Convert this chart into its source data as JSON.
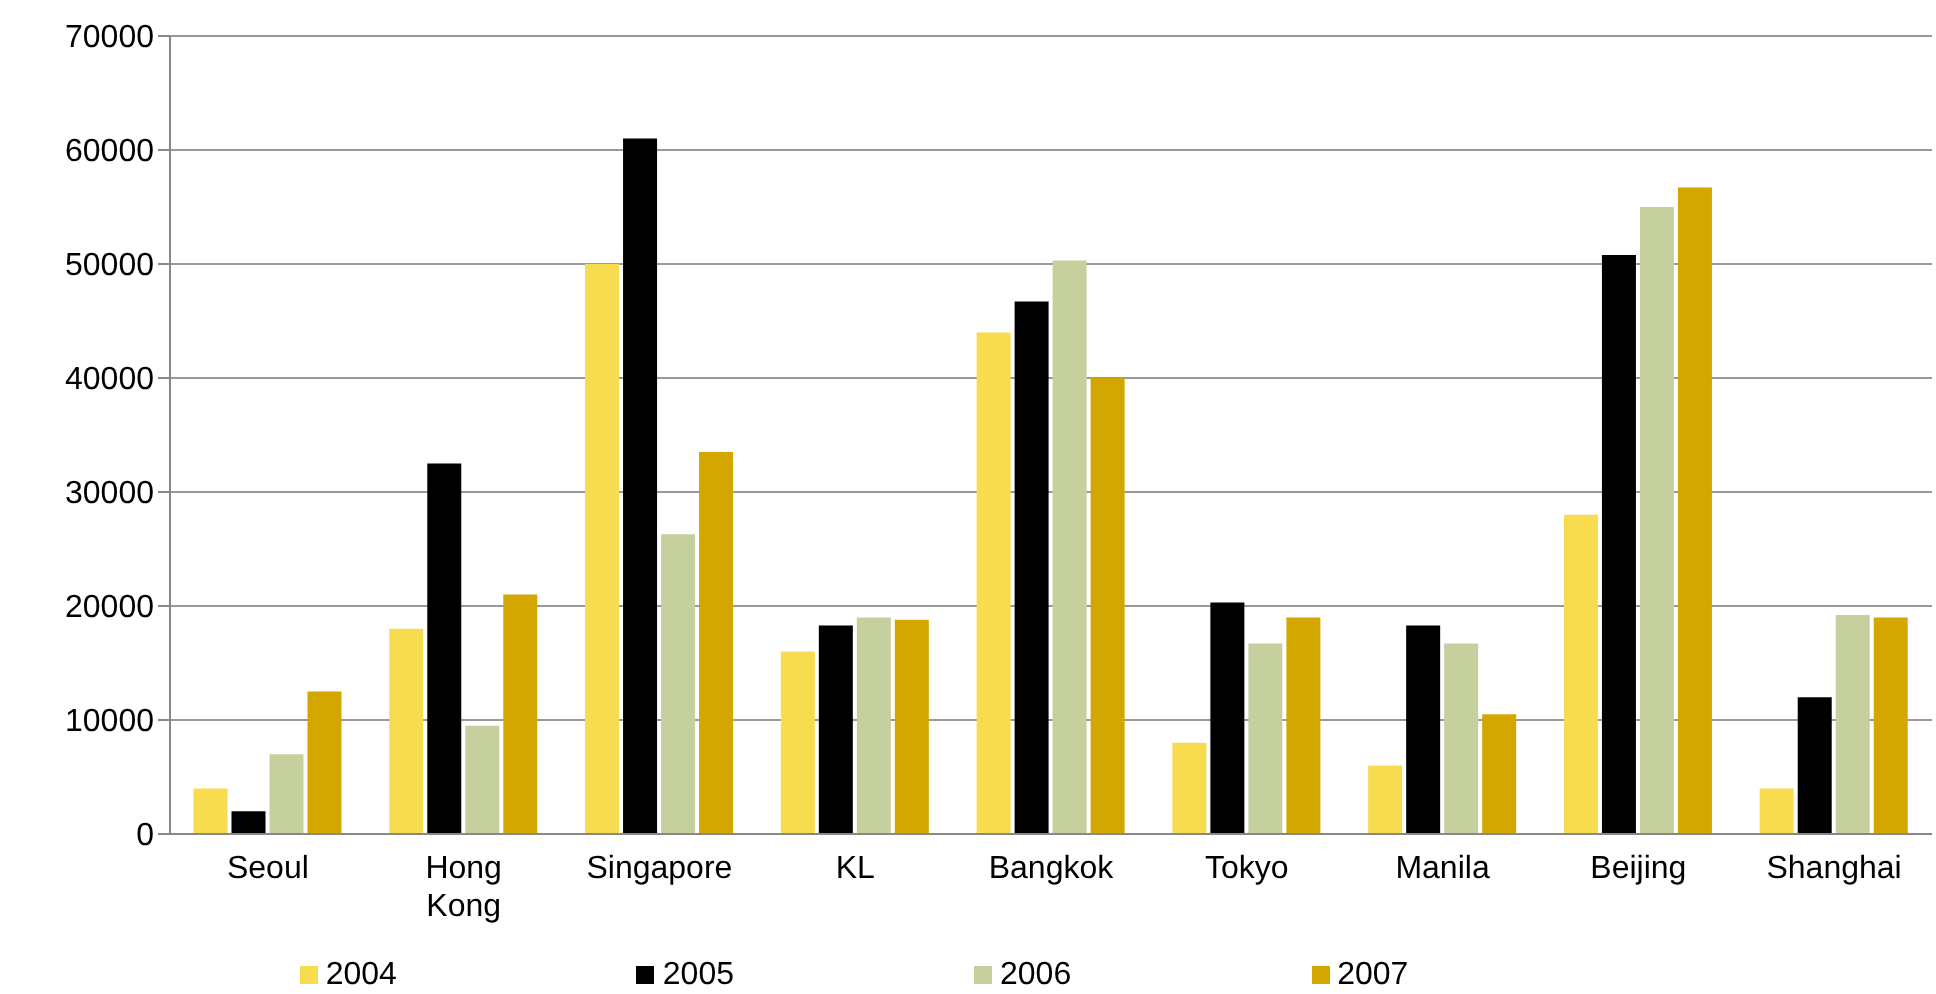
{
  "chart_data": {
    "type": "bar",
    "categories": [
      "Seoul",
      "Hong Kong",
      "Singapore",
      "KL",
      "Bangkok",
      "Tokyo",
      "Manila",
      "Beijing",
      "Shanghai"
    ],
    "series": [
      {
        "name": "2004",
        "color": "#f7dc4f",
        "values": [
          4000,
          18000,
          50000,
          16000,
          44000,
          8000,
          6000,
          28000,
          4000
        ]
      },
      {
        "name": "2005",
        "color": "#000000",
        "values": [
          2000,
          32500,
          61000,
          18300,
          46700,
          20300,
          18300,
          50800,
          12000
        ]
      },
      {
        "name": "2006",
        "color": "#c6cf9e",
        "values": [
          7000,
          9500,
          26300,
          19000,
          50300,
          16700,
          16700,
          55000,
          19200
        ]
      },
      {
        "name": "2007",
        "color": "#d4a600",
        "values": [
          12500,
          21000,
          33500,
          18800,
          40000,
          19000,
          10500,
          56700,
          19000
        ]
      }
    ],
    "ylim": [
      0,
      70000
    ],
    "yticks": [
      0,
      10000,
      20000,
      30000,
      40000,
      50000,
      60000,
      70000
    ],
    "grid": "y",
    "legend": "bottom"
  }
}
